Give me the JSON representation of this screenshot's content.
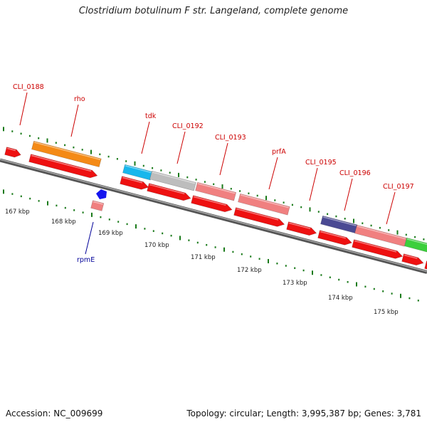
{
  "title": "Clostridium botulinum F str. Langeland, complete genome",
  "footer": {
    "accession": "Accession: NC_009699",
    "summary": "Topology: circular; Length: 3,995,387 bp; Genes: 3,781"
  },
  "colors": {
    "backbone": "#7a7a7a",
    "cds_red": "#ee1111",
    "orange": "#f48a16",
    "cyan": "#18b7ec",
    "gray": "#bdbdbd",
    "salmon": "#f08080",
    "indigo": "#4b4a93",
    "green": "#3ccf3c",
    "blue": "#1515ee",
    "tick": "#1a7a1a",
    "label_red": "#cc0000",
    "label_blue": "#000099"
  },
  "scale_labels": [
    "167 kbp",
    "168 kbp",
    "169 kbp",
    "170 kbp",
    "171 kbp",
    "172 kbp",
    "173 kbp",
    "174 kbp",
    "175 kbp"
  ],
  "feature_labels": [
    {
      "id": "cli0188",
      "text": "CLI_0188",
      "color": "red"
    },
    {
      "id": "rho",
      "text": "rho",
      "color": "red"
    },
    {
      "id": "tdk",
      "text": "tdk",
      "color": "red"
    },
    {
      "id": "cli0192",
      "text": "CLI_0192",
      "color": "red"
    },
    {
      "id": "cli0193",
      "text": "CLI_0193",
      "color": "red"
    },
    {
      "id": "prfA",
      "text": "prfA",
      "color": "red"
    },
    {
      "id": "cli0195",
      "text": "CLI_0195",
      "color": "red"
    },
    {
      "id": "cli0196",
      "text": "CLI_0196",
      "color": "red"
    },
    {
      "id": "cli0197",
      "text": "CLI_0197",
      "color": "red"
    },
    {
      "id": "rpmE",
      "text": "rpmE",
      "color": "blue"
    }
  ]
}
